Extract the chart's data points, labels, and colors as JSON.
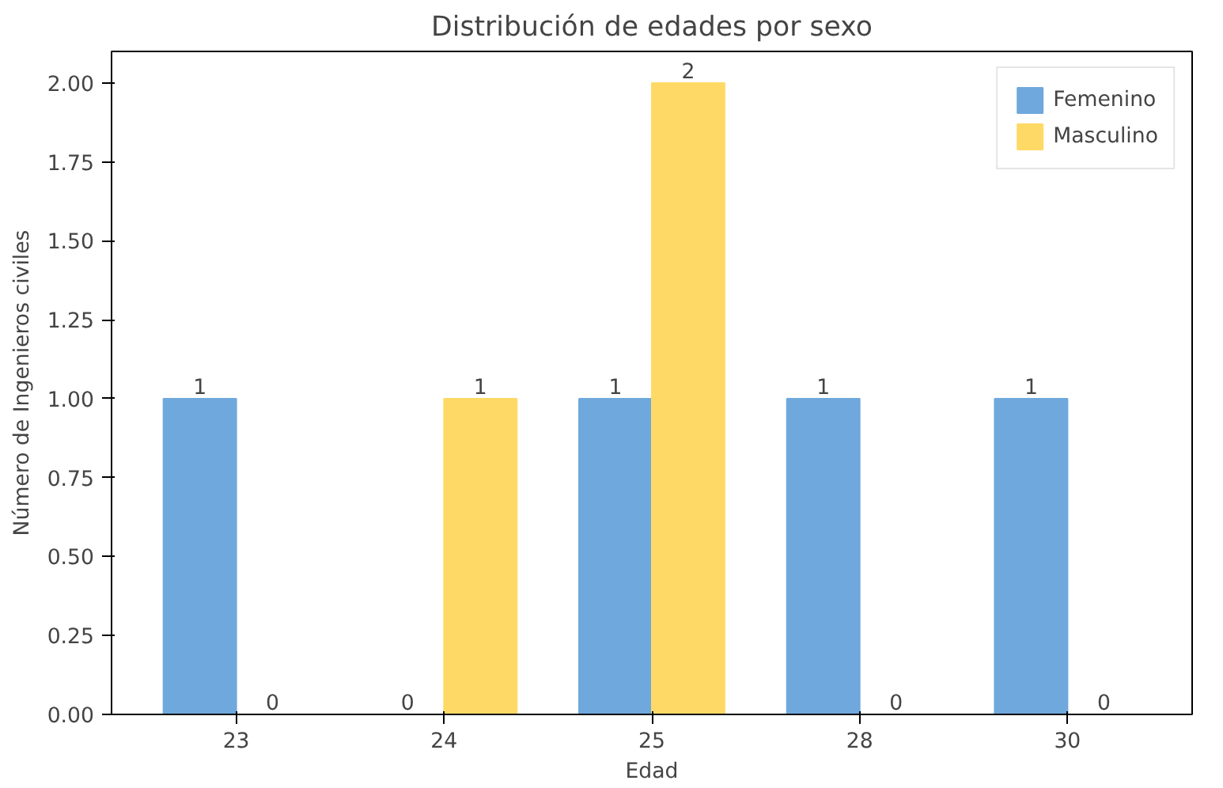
{
  "chart_data": {
    "type": "bar",
    "title": "Distribución de edades por sexo",
    "xlabel": "Edad",
    "ylabel": "Número de Ingenieros civiles",
    "categories": [
      "23",
      "24",
      "25",
      "28",
      "30"
    ],
    "series": [
      {
        "name": "Femenino",
        "color": "#6fa8dc",
        "values": [
          1,
          0,
          1,
          1,
          1
        ]
      },
      {
        "name": "Masculino",
        "color": "#ffd966",
        "values": [
          0,
          1,
          2,
          0,
          0
        ]
      }
    ],
    "ylim": [
      0,
      2.1
    ],
    "yticks": [
      {
        "value": 0,
        "label": "0.00"
      },
      {
        "value": 0.25,
        "label": "0.25"
      },
      {
        "value": 0.5,
        "label": "0.50"
      },
      {
        "value": 0.75,
        "label": "0.75"
      },
      {
        "value": 1,
        "label": "1.00"
      },
      {
        "value": 1.25,
        "label": "1.25"
      },
      {
        "value": 1.5,
        "label": "1.50"
      },
      {
        "value": 1.75,
        "label": "1.75"
      },
      {
        "value": 2,
        "label": "2.00"
      }
    ],
    "data_labels": true,
    "legend": "top right",
    "grid": false
  }
}
